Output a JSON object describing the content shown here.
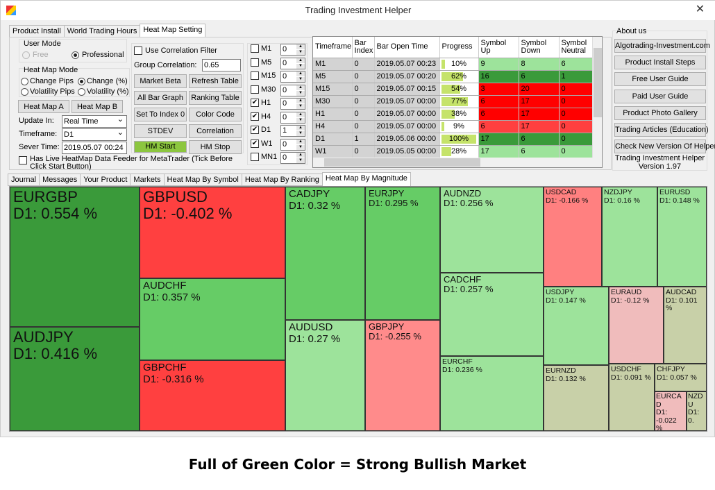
{
  "window": {
    "title": "Trading Investment Helper",
    "close": "✕"
  },
  "top_tabs": [
    "Product Install",
    "World Trading Hours",
    "Heat Map Setting"
  ],
  "settings": {
    "user_mode": {
      "label": "User Mode",
      "free": "Free",
      "professional": "Professional",
      "selected": "Professional"
    },
    "heat_map_mode": {
      "label": "Heat Map Mode",
      "options": [
        "Change Pips",
        "Change (%)",
        "Volatility Pips",
        "Volatility (%)"
      ],
      "selected": "Change (%)"
    },
    "heat_map_a": "Heat Map A",
    "heat_map_b": "Heat Map B",
    "update_in": {
      "label": "Update In:",
      "value": "Real Time"
    },
    "timeframe": {
      "label": "Timeframe:",
      "value": "D1"
    },
    "server_time": {
      "label": "Sever Time:",
      "value": "2019.05.07 00:24"
    },
    "live_feeder": {
      "label": "Has Live HeatMap Data Feeder for MetaTrader (Tick Before Click Start Button)",
      "checked": false
    },
    "use_correlation_filter": {
      "label": "Use Correlation Filter",
      "checked": false
    },
    "group_correlation": {
      "label": "Group Correlation:",
      "value": "0.65"
    },
    "buttons": [
      "Market Beta",
      "Refresh Table",
      "All Bar Graph",
      "Ranking Table",
      "Set To Index 0",
      "Color Code",
      "STDEV",
      "Correlation",
      "HM Start",
      "HM Stop"
    ],
    "timeframes": [
      {
        "label": "M1",
        "checked": false,
        "value": "0"
      },
      {
        "label": "M5",
        "checked": false,
        "value": "0"
      },
      {
        "label": "M15",
        "checked": false,
        "value": "0"
      },
      {
        "label": "M30",
        "checked": false,
        "value": "0"
      },
      {
        "label": "H1",
        "checked": true,
        "value": "0"
      },
      {
        "label": "H4",
        "checked": true,
        "value": "0"
      },
      {
        "label": "D1",
        "checked": true,
        "value": "1"
      },
      {
        "label": "W1",
        "checked": true,
        "value": "0"
      },
      {
        "label": "MN1",
        "checked": false,
        "value": "0"
      }
    ]
  },
  "table": {
    "headers": [
      "Timeframe",
      "Bar Index",
      "Bar Open Time",
      "Progress",
      "Symbol Up",
      "Symbol Down",
      "Symbol Neutral"
    ],
    "rows": [
      {
        "tf": "M1",
        "idx": "0",
        "time": "2019.05.07 00:23",
        "progress": 10,
        "progress_label": "10%",
        "up": "9",
        "down": "8",
        "neutral": "6",
        "color": "#9de39b"
      },
      {
        "tf": "M5",
        "idx": "0",
        "time": "2019.05.07 00:20",
        "progress": 62,
        "progress_label": "62%",
        "up": "16",
        "down": "6",
        "neutral": "1",
        "color": "#3a9a3a"
      },
      {
        "tf": "M15",
        "idx": "0",
        "time": "2019.05.07 00:15",
        "progress": 54,
        "progress_label": "54%",
        "up": "3",
        "down": "20",
        "neutral": "0",
        "color": "#ff0000"
      },
      {
        "tf": "M30",
        "idx": "0",
        "time": "2019.05.07 00:00",
        "progress": 77,
        "progress_label": "77%",
        "up": "6",
        "down": "17",
        "neutral": "0",
        "color": "#ff0000"
      },
      {
        "tf": "H1",
        "idx": "0",
        "time": "2019.05.07 00:00",
        "progress": 38,
        "progress_label": "38%",
        "up": "6",
        "down": "17",
        "neutral": "0",
        "color": "#ff0000"
      },
      {
        "tf": "H4",
        "idx": "0",
        "time": "2019.05.07 00:00",
        "progress": 9,
        "progress_label": "9%",
        "up": "6",
        "down": "17",
        "neutral": "0",
        "color": "#ff4040"
      },
      {
        "tf": "D1",
        "idx": "1",
        "time": "2019.05.06 00:00",
        "progress": 100,
        "progress_label": "100%",
        "up": "17",
        "down": "6",
        "neutral": "0",
        "color": "#3a9a3a"
      },
      {
        "tf": "W1",
        "idx": "0",
        "time": "2019.05.05 00:00",
        "progress": 28,
        "progress_label": "28%",
        "up": "17",
        "down": "6",
        "neutral": "0",
        "color": "#9de39b"
      }
    ]
  },
  "about": {
    "label": "About us",
    "buttons": [
      "Algotrading-Investment.com",
      "Product Install Steps",
      "Free User Guide",
      "Paid User Guide",
      "Product Photo Gallery",
      "Trading Articles (Education)",
      "Check New Version Of Helper"
    ],
    "app_name": "Trading Investment Helper",
    "version": "Version 1.97"
  },
  "bottom_tabs": [
    "Journal",
    "Messages",
    "Your Product",
    "Markets",
    "Heat Map By Symbol",
    "Heat Map By Ranking",
    "Heat Map By Magnitude"
  ],
  "treemap": [
    {
      "symbol": "EURGBP",
      "value": "D1: 0.554 %",
      "color": "#3a9a3a"
    },
    {
      "symbol": "AUDJPY",
      "value": "D1: 0.416 %",
      "color": "#3a9a3a"
    },
    {
      "symbol": "GBPUSD",
      "value": "D1: -0.402 %",
      "color": "#ff4040"
    },
    {
      "symbol": "AUDCHF",
      "value": "D1: 0.357 %",
      "color": "#66cc66"
    },
    {
      "symbol": "GBPCHF",
      "value": "D1: -0.316 %",
      "color": "#ff4040"
    },
    {
      "symbol": "CADJPY",
      "value": "D1: 0.32 %",
      "color": "#66cc66"
    },
    {
      "symbol": "EURJPY",
      "value": "D1: 0.295 %",
      "color": "#66cc66"
    },
    {
      "symbol": "AUDUSD",
      "value": "D1: 0.27 %",
      "color": "#9de39b"
    },
    {
      "symbol": "GBPJPY",
      "value": "D1: -0.255 %",
      "color": "#ff8b8b"
    },
    {
      "symbol": "AUDNZD",
      "value": "D1: 0.256 %",
      "color": "#9de39b"
    },
    {
      "symbol": "CADCHF",
      "value": "D1: 0.257 %",
      "color": "#9de39b"
    },
    {
      "symbol": "EURCHF",
      "value": "D1: 0.236 %",
      "color": "#9de39b"
    },
    {
      "symbol": "USDCAD",
      "value": "D1: -0.166 %",
      "color": "#ff8080"
    },
    {
      "symbol": "NZDJPY",
      "value": "D1: 0.16 %",
      "color": "#9de39b"
    },
    {
      "symbol": "EURUSD",
      "value": "D1: 0.148 %",
      "color": "#9de39b"
    },
    {
      "symbol": "USDJPY",
      "value": "D1: 0.147 %",
      "color": "#9de39b"
    },
    {
      "symbol": "EURAUD",
      "value": "D1: -0.12 %",
      "color": "#f0bcbc"
    },
    {
      "symbol": "AUDCAD",
      "value": "D1: 0.101 %",
      "color": "#c8d0a8"
    },
    {
      "symbol": "EURNZD",
      "value": "D1: 0.132 %",
      "color": "#c8d0a8"
    },
    {
      "symbol": "USDCHF",
      "value": "D1: 0.091 %",
      "color": "#c8d0a8"
    },
    {
      "symbol": "CHFJPY",
      "value": "D1: 0.057 %",
      "color": "#c8d0a8"
    },
    {
      "symbol": "EURCAD",
      "value": "D1: -0.022 %",
      "color": "#f0bcbc"
    },
    {
      "symbol": "NZDU",
      "value": "D1: 0.",
      "color": "#c8d0a8"
    }
  ],
  "caption": "Full of Green Color = Strong Bullish Market"
}
